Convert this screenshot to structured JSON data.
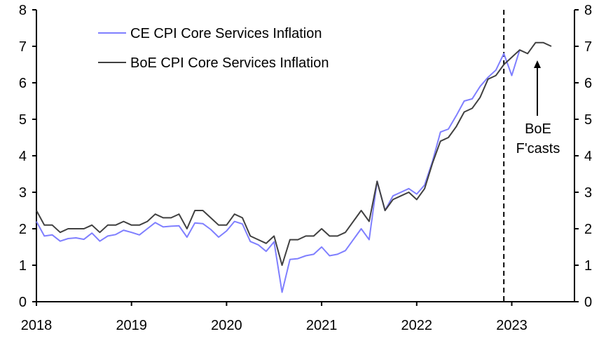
{
  "chart_data": {
    "type": "line",
    "title": "",
    "xlabel": "",
    "ylabel": "",
    "ylim": [
      0,
      8
    ],
    "yticks": [
      "0",
      "1",
      "2",
      "3",
      "4",
      "5",
      "6",
      "7",
      "8"
    ],
    "xticks": [
      "2018",
      "2019",
      "2020",
      "2021",
      "2022",
      "2023"
    ],
    "x_start": "2018-01",
    "frequency": "monthly",
    "grid": false,
    "legend_position": "top-left",
    "forecast_start": "2022-12",
    "annotation": {
      "line1": "BoE",
      "line2": "F'casts"
    },
    "series": [
      {
        "name": "CE CPI Core Services Inflation",
        "color": "#7f7fff",
        "values": [
          2.2,
          1.8,
          1.83,
          1.66,
          1.73,
          1.75,
          1.71,
          1.88,
          1.66,
          1.8,
          1.84,
          1.96,
          1.9,
          1.83,
          2.0,
          2.17,
          2.05,
          2.07,
          2.08,
          1.77,
          2.16,
          2.14,
          1.98,
          1.77,
          1.94,
          2.2,
          2.13,
          1.65,
          1.56,
          1.38,
          1.64,
          0.26,
          1.16,
          1.18,
          1.26,
          1.3,
          1.5,
          1.26,
          1.3,
          1.4,
          1.7,
          2.0,
          1.7,
          3.3,
          2.5,
          2.9,
          3.0,
          3.1,
          2.95,
          3.2,
          3.85,
          4.65,
          4.73,
          5.1,
          5.5,
          5.56,
          5.9,
          6.15,
          6.35,
          6.8,
          6.2,
          6.9
        ]
      },
      {
        "name": "BoE CPI Core Services Inflation",
        "color": "#404040",
        "values": [
          2.5,
          2.1,
          2.1,
          1.9,
          2.0,
          2.0,
          2.0,
          2.1,
          1.9,
          2.1,
          2.1,
          2.2,
          2.1,
          2.1,
          2.2,
          2.4,
          2.3,
          2.3,
          2.4,
          2.0,
          2.5,
          2.5,
          2.3,
          2.1,
          2.1,
          2.4,
          2.3,
          1.8,
          1.7,
          1.6,
          1.8,
          1.0,
          1.7,
          1.7,
          1.8,
          1.8,
          2.0,
          1.8,
          1.8,
          1.9,
          2.2,
          2.5,
          2.2,
          3.3,
          2.5,
          2.8,
          2.9,
          3.0,
          2.8,
          3.1,
          3.8,
          4.4,
          4.5,
          4.8,
          5.2,
          5.3,
          5.6,
          6.1,
          6.2,
          6.5,
          6.7,
          6.9,
          6.8,
          7.1,
          7.1,
          7.0
        ]
      }
    ]
  }
}
